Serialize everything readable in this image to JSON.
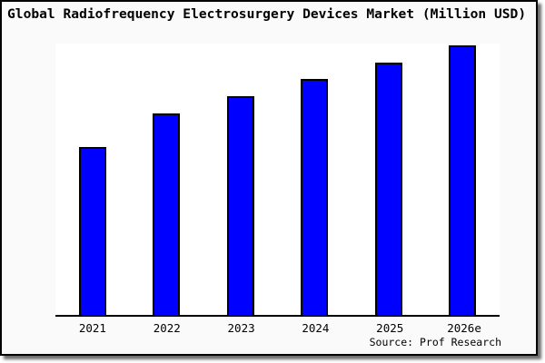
{
  "title": "Global Radiofrequency Electrosurgery Devices Market (Million USD)",
  "source": "Source: Prof Research",
  "colors": {
    "bar_fill": "#0000ff",
    "bar_border": "#000000",
    "axis": "#000000",
    "text": "#000000",
    "card_background": "#fafafa",
    "plot_background": "#ffffff"
  },
  "chart_data": {
    "type": "bar",
    "title": "Global Radiofrequency Electrosurgery Devices Market (Million USD)",
    "categories": [
      "2021",
      "2022",
      "2023",
      "2024",
      "2025",
      "2026e"
    ],
    "values": [
      185,
      222,
      241,
      260,
      278,
      297
    ],
    "value_note": "no y-axis shown; values estimated as relative bar heights in px",
    "xlabel": "",
    "ylabel": "",
    "ylim": [
      0,
      299
    ],
    "grid": false,
    "legend": false,
    "source": "Source: Prof Research"
  }
}
